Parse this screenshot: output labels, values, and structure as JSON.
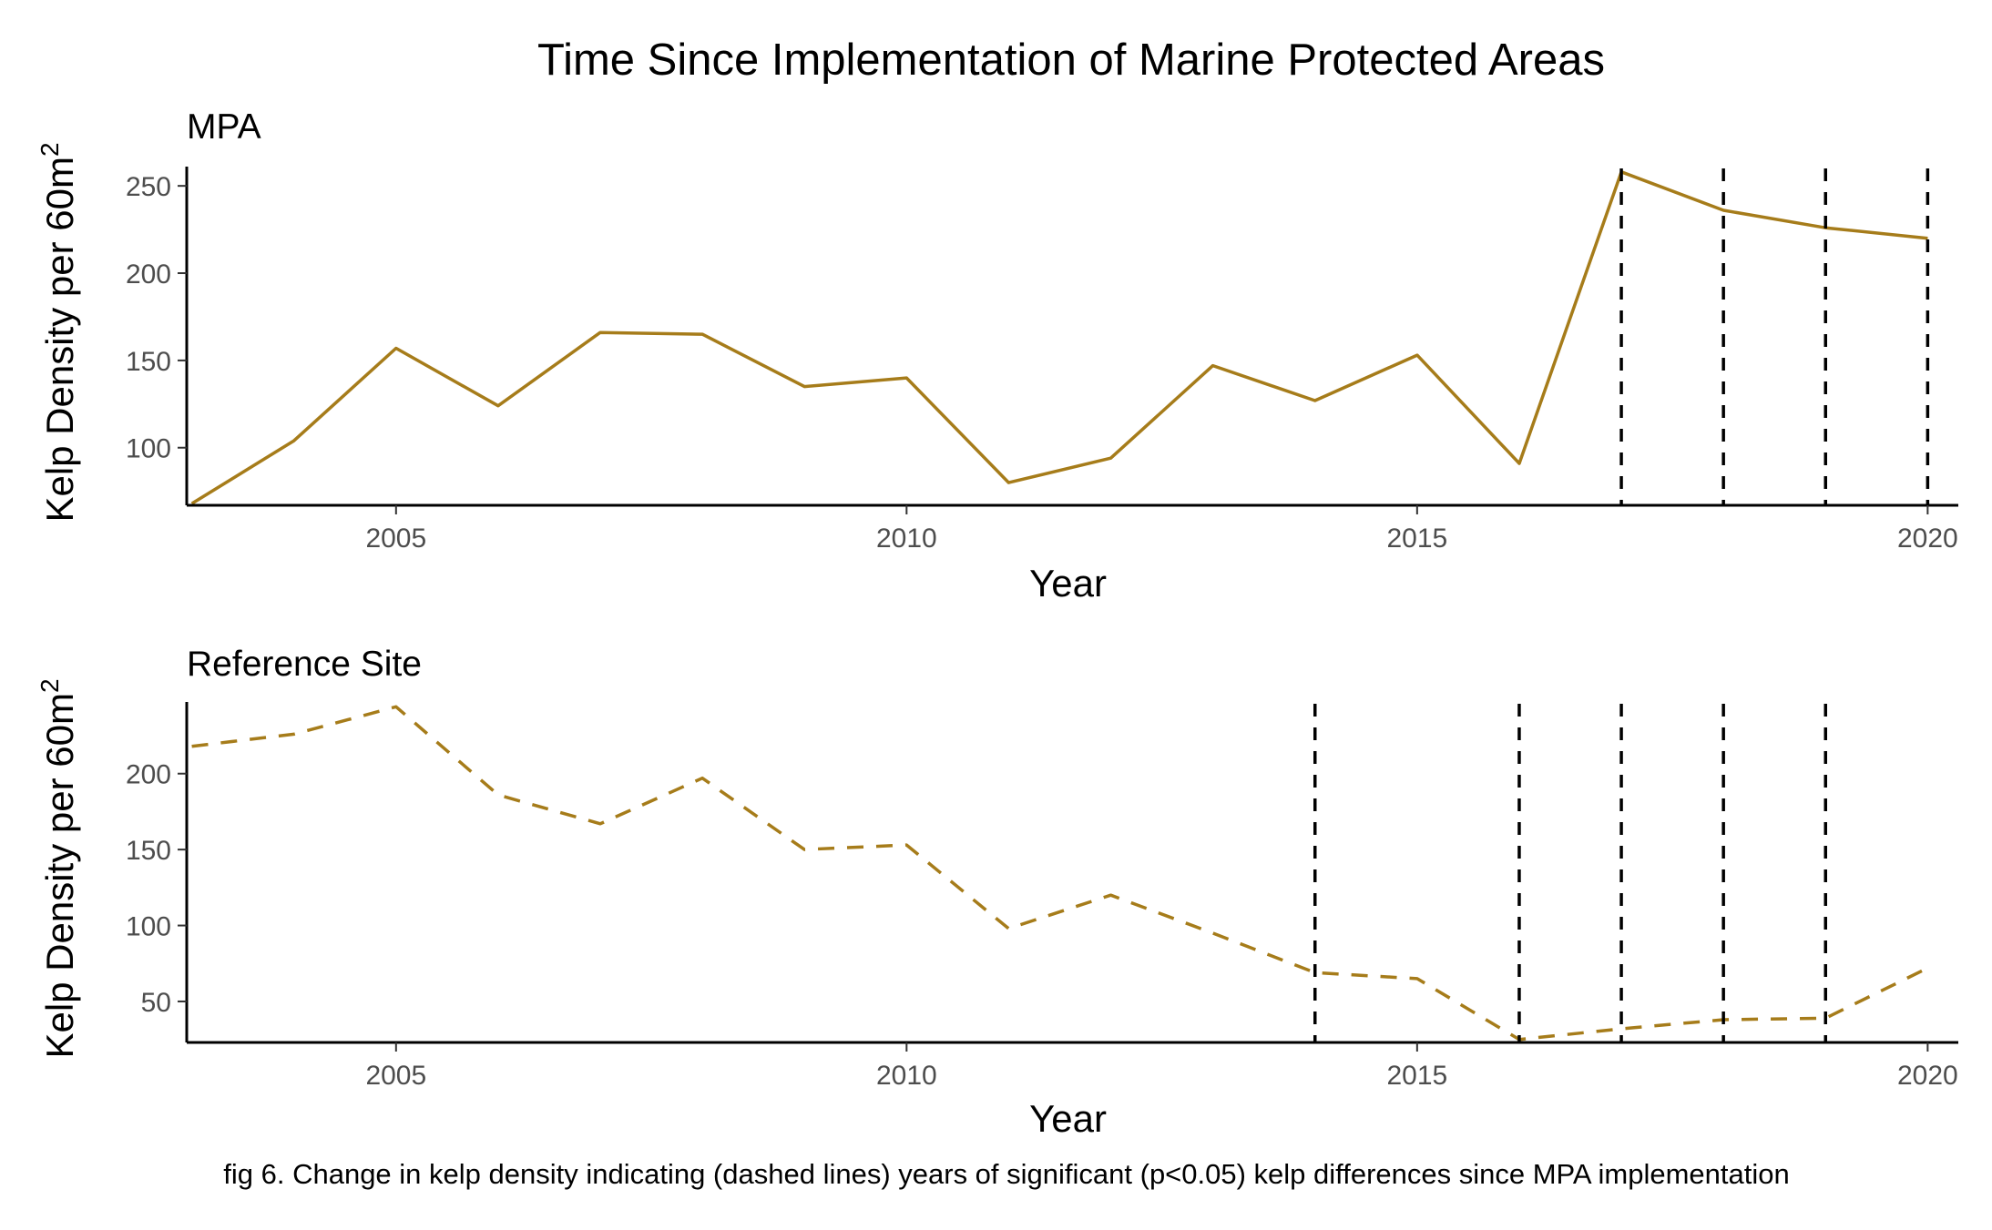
{
  "chart_data": {
    "type": "line",
    "title": "Time Since Implementation of Marine Protected Areas",
    "caption": "fig 6. Change in kelp density indicating (dashed lines) years of significant (p<0.05) kelp differences since MPA implementation",
    "line_color": "#a67c1a",
    "panels": [
      {
        "title": "MPA",
        "xlabel": "Year",
        "ylabel": "Kelp Density per 60m",
        "ylabel_superscript": "2",
        "xlim": [
          2002.95,
          2020.3
        ],
        "ylim": [
          67,
          260
        ],
        "xticks": [
          2005,
          2010,
          2015,
          2020
        ],
        "yticks": [
          100,
          150,
          200,
          250
        ],
        "line_style": "solid",
        "significant_years": [
          2017,
          2018,
          2019,
          2020
        ],
        "series": [
          {
            "x": [
              2003,
              2004,
              2005,
              2006,
              2007,
              2008,
              2009,
              2010,
              2011,
              2012,
              2013,
              2014,
              2015,
              2016,
              2017,
              2018,
              2019,
              2020
            ],
            "values": [
              68,
              104,
              157,
              124,
              166,
              165,
              135,
              140,
              80,
              94,
              147,
              127,
              153,
              91,
              258,
              236,
              226,
              220
            ]
          }
        ]
      },
      {
        "title": "Reference Site",
        "xlabel": "Year",
        "ylabel": "Kelp Density per 60m",
        "ylabel_superscript": "2",
        "xlim": [
          2002.95,
          2020.3
        ],
        "ylim": [
          23,
          246
        ],
        "xticks": [
          2005,
          2010,
          2015,
          2020
        ],
        "yticks": [
          50,
          100,
          150,
          200
        ],
        "line_style": "dashed",
        "significant_years": [
          2014,
          2016,
          2017,
          2018,
          2019
        ],
        "series": [
          {
            "x": [
              2003,
              2004,
              2005,
              2006,
              2007,
              2008,
              2009,
              2010,
              2011,
              2012,
              2013,
              2014,
              2015,
              2016,
              2017,
              2018,
              2019,
              2020
            ],
            "values": [
              218,
              226,
              244,
              186,
              167,
              197,
              150,
              153,
              98,
              120,
              95,
              69,
              65,
              25,
              32,
              38,
              39,
              72
            ]
          }
        ]
      }
    ]
  }
}
